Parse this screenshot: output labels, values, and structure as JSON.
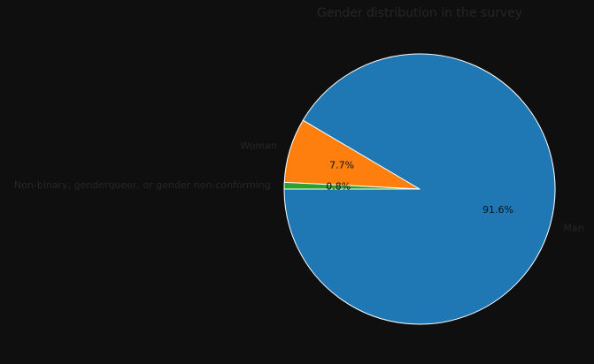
{
  "chart_data": {
    "type": "pie",
    "title": "Gender distribution in the survey",
    "slices": [
      {
        "label": "Man",
        "value": 91.6,
        "pct_label": "91.6%",
        "color": "#1f77b4"
      },
      {
        "label": "Woman",
        "value": 7.7,
        "pct_label": "7.7%",
        "color": "#ff7f0e"
      },
      {
        "label": "Non-binary, genderqueer, or gender non-conforming",
        "value": 0.8,
        "pct_label": "0.8%",
        "color": "#2ca02c"
      }
    ],
    "start_angle_deg": 180,
    "direction": "counterclockwise",
    "edge_color": "#ffffff",
    "background": "#0f0f0f"
  }
}
